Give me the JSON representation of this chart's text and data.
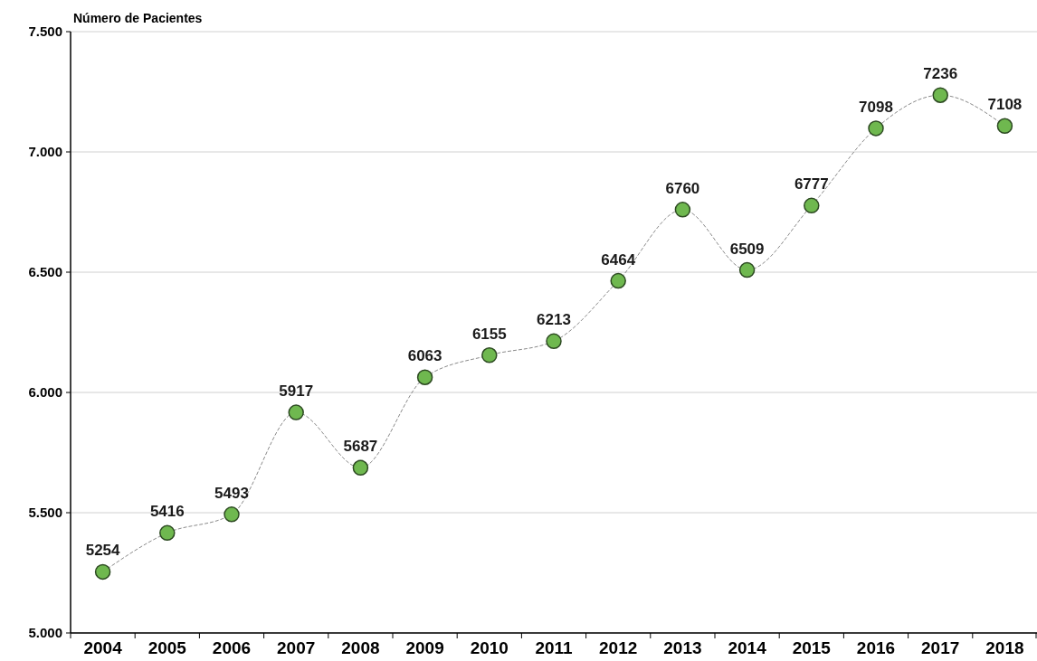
{
  "chart_data": {
    "type": "line",
    "ylabel": "Número de Pacientes",
    "categories": [
      "2004",
      "2005",
      "2006",
      "2007",
      "2008",
      "2009",
      "2010",
      "2011",
      "2012",
      "2013",
      "2014",
      "2015",
      "2016",
      "2017",
      "2018"
    ],
    "series": [
      {
        "color": "#6fb84f",
        "values": [
          5254,
          5416,
          5493,
          5917,
          5687,
          6063,
          6155,
          6213,
          6464,
          6760,
          6509,
          6777,
          7098,
          7236,
          7108
        ]
      }
    ],
    "ylim": [
      5000,
      7500
    ],
    "yticks": [
      {
        "value": 5000,
        "label": "5.000"
      },
      {
        "value": 5500,
        "label": "5.500"
      },
      {
        "value": 6000,
        "label": "6.000"
      },
      {
        "value": 6500,
        "label": "6.500"
      },
      {
        "value": 7000,
        "label": "7.000"
      },
      {
        "value": 7500,
        "label": "7.500"
      }
    ],
    "grid": "y",
    "marker": "circle",
    "line_style": "dashed",
    "data_labels": true
  }
}
